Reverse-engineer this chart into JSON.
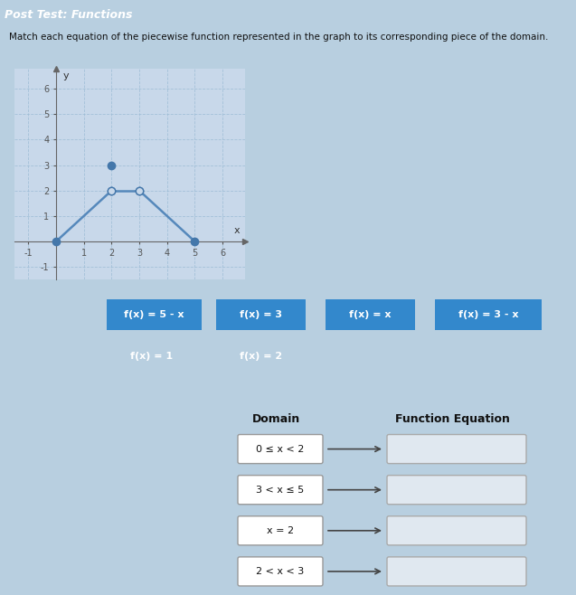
{
  "title": "Post Test: Functions",
  "subtitle": "Match each equation of the piecewise function represented in the graph to its corresponding piece of the domain.",
  "bg_color": "#b8cfe0",
  "title_bg": "#5090bb",
  "graph_bg": "#c8d8ea",
  "graph_xlim": [
    -1.5,
    6.8
  ],
  "graph_ylim": [
    -1.5,
    6.8
  ],
  "graph_xticks": [
    -1,
    0,
    1,
    2,
    3,
    4,
    5,
    6
  ],
  "graph_yticks": [
    -1,
    0,
    1,
    2,
    3,
    4,
    5,
    6
  ],
  "button_color": "#3388cc",
  "button_text_color": "#ffffff",
  "buttons_row1": [
    "f(x) = 5 - x",
    "f(x) = 3",
    "f(x) = x",
    "f(x) = 3 - x"
  ],
  "buttons_row2": [
    "f(x) = 1",
    "f(x) = 2"
  ],
  "domain_labels": [
    "0 ≤ x < 2",
    "3 < x ≤ 5",
    "x = 2",
    "2 < x < 3"
  ],
  "col_domain": "Domain",
  "col_func": "Function Equation",
  "domain_box_color": "#ffffff",
  "domain_box_border": "#999999",
  "answer_box_color": "#e0e8f0",
  "answer_box_border": "#aaaaaa",
  "arrow_color": "#444444",
  "graph_line_color": "#5588bb",
  "graph_dot_closed": "#4477aa",
  "graph_dot_open_fill": "#c8d8ea",
  "graph_dot_border": "#4477aa",
  "grid_color": "#9bbbd4",
  "axis_color": "#666666",
  "tick_color": "#555555"
}
